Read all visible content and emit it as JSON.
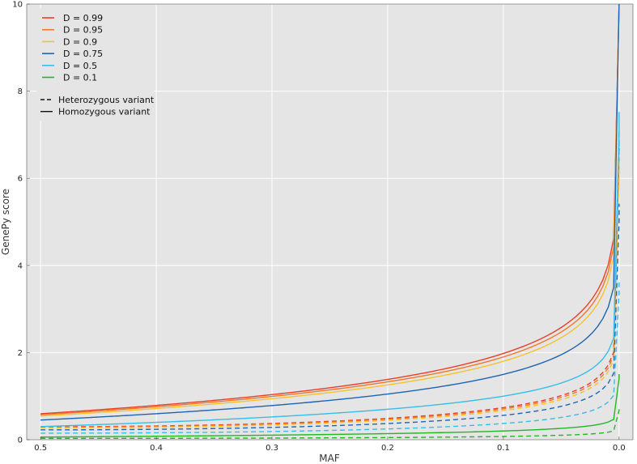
{
  "chart_data": {
    "type": "line",
    "title": "",
    "xlabel": "MAF",
    "ylabel": "GenePy score",
    "xlim": [
      0.512,
      -0.012
    ],
    "ylim": [
      0,
      10
    ],
    "x_inverted": true,
    "xticks": [
      0.5,
      0.4,
      0.3,
      0.2,
      0.1,
      0.0
    ],
    "xtick_labels": [
      "0.5",
      "0.4",
      "0.3",
      "0.2",
      "0.1",
      "0.0"
    ],
    "yticks": [
      0,
      2,
      4,
      6,
      8,
      10
    ],
    "ytick_labels": [
      "0",
      "2",
      "4",
      "6",
      "8",
      "10"
    ],
    "grid": true,
    "legend_position": "top-left",
    "style_legend": [
      {
        "label": "Heterozygous variant",
        "dash": "dashed"
      },
      {
        "label": "Homozygous variant",
        "dash": "solid"
      }
    ],
    "series": [
      {
        "name": "D = 0.99",
        "color": "#e8402a",
        "D": 0.99
      },
      {
        "name": "D = 0.95",
        "color": "#f07828",
        "D": 0.95
      },
      {
        "name": "D = 0.9",
        "color": "#f6c22a",
        "D": 0.9
      },
      {
        "name": "D = 0.75",
        "color": "#1e64b4",
        "D": 0.75
      },
      {
        "name": "D = 0.5",
        "color": "#36bde8",
        "D": 0.5
      },
      {
        "name": "D = 0.1",
        "color": "#22b822",
        "D": 0.1
      }
    ]
  }
}
